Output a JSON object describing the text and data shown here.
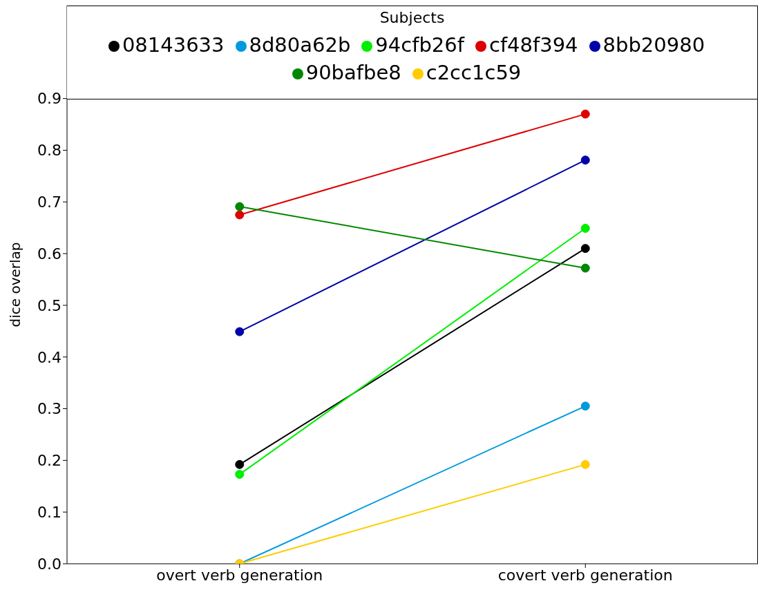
{
  "chart_data": {
    "type": "line",
    "ylabel": "dice overlap",
    "legend_title": "Subjects",
    "categories": [
      "overt  verb  generation",
      "covert  verb  generation"
    ],
    "series": [
      {
        "name": "08143633",
        "color": "#000000",
        "values": [
          0.192,
          0.61
        ]
      },
      {
        "name": "8d80a62b",
        "color": "#0099dd",
        "values": [
          0.0,
          0.305
        ]
      },
      {
        "name": "94cfb26f",
        "color": "#00ee00",
        "values": [
          0.173,
          0.649
        ]
      },
      {
        "name": "cf48f394",
        "color": "#dd0000",
        "values": [
          0.675,
          0.87
        ]
      },
      {
        "name": "8bb20980",
        "color": "#0000aa",
        "values": [
          0.449,
          0.781
        ]
      },
      {
        "name": "90bafbe8",
        "color": "#008800",
        "values": [
          0.691,
          0.572
        ]
      },
      {
        "name": "c2cc1c59",
        "color": "#ffcc00",
        "values": [
          0.0,
          0.192
        ]
      }
    ],
    "ylim": [
      0,
      1.08
    ],
    "yticks": [
      {
        "value": 0,
        "label": "0.0"
      },
      {
        "value": 0.1,
        "label": "0.1"
      },
      {
        "value": 0.2,
        "label": "0.2"
      },
      {
        "value": 0.3,
        "label": "0.3"
      },
      {
        "value": 0.4,
        "label": "0.4"
      },
      {
        "value": 0.5,
        "label": "0.5"
      },
      {
        "value": 0.6,
        "label": "0.6"
      },
      {
        "value": 0.7,
        "label": "0.7"
      },
      {
        "value": 0.8,
        "label": "0.8"
      },
      {
        "value": 0.9,
        "label": "0.9"
      }
    ],
    "legend": "top",
    "marker": "circle",
    "line_style": "solid"
  }
}
